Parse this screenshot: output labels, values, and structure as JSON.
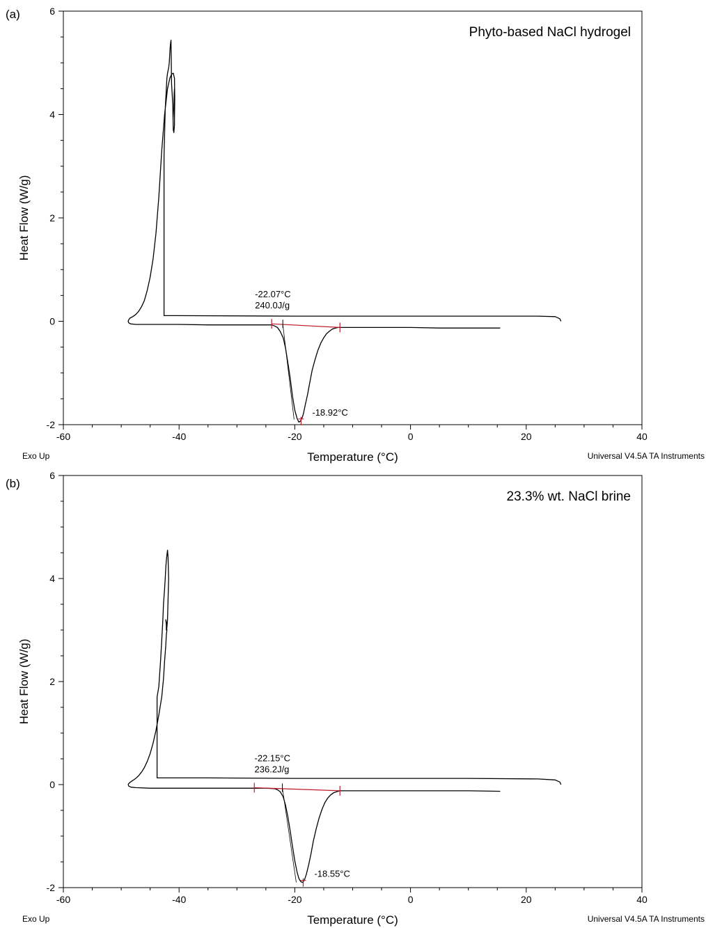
{
  "chart_data": [
    {
      "type": "line",
      "panel_label": "(a)",
      "title": "Phyto-based NaCl hydrogel",
      "xlabel": "Temperature (°C)",
      "ylabel": "Heat Flow (W/g)",
      "xlim": [
        -60,
        40
      ],
      "ylim": [
        -2,
        6
      ],
      "xticks": [
        -60,
        -40,
        -20,
        0,
        20,
        40
      ],
      "yticks": [
        -2,
        0,
        2,
        4,
        6
      ],
      "footer_left": "Exo Up",
      "footer_right": "Universal V4.5A TA Instruments",
      "annotations": {
        "onset_temp": "-22.07°C",
        "enthalpy": "240.0J/g",
        "peak_label": "-18.92°C"
      },
      "markers": {
        "onset_x": -22.07,
        "peak_x": -18.92,
        "peak_y": -1.93,
        "integration_limits": [
          -24,
          -12.2
        ]
      },
      "baseline": {
        "x": [
          -24,
          -12.2
        ],
        "y": [
          -0.05,
          -0.12
        ]
      },
      "series": [
        {
          "x": [
            26,
            25.8,
            25,
            22,
            10,
            0,
            -20,
            -42.6,
            -42.6,
            -42.6,
            -42.6,
            -42.4,
            -42.2,
            -42.1,
            -42.0,
            -41.9,
            -41.8,
            -41.7,
            -41.6,
            -41.5,
            -41.4,
            -41.3,
            -41.1,
            -41.0,
            -40.9,
            -40.8,
            -40.8,
            -40.75,
            -40.8,
            -40.85,
            -40.9,
            -40.8,
            -40.75,
            -40.8,
            -40.9,
            -41.0,
            -41.3,
            -41.6,
            -42.0,
            -42.5,
            -43.0,
            -43.5,
            -44.0,
            -44.5,
            -45.0,
            -45.5,
            -46.0,
            -46.5,
            -47.0,
            -47.5,
            -48.0,
            -48.5,
            -48.7,
            -48.8,
            -48.7,
            -48.4,
            -47.5,
            -46.0,
            -44.0,
            -40.0,
            -35.0,
            -30.0,
            -26.0,
            -24.0,
            -23.5,
            -23.0,
            -22.5,
            -22.0,
            -21.6,
            -21.2,
            -20.8,
            -20.4,
            -20.0,
            -19.6,
            -19.3,
            -19.0,
            -18.9,
            -18.7,
            -18.5,
            -18.2,
            -17.8,
            -17.4,
            -17.0,
            -16.5,
            -16.0,
            -15.5,
            -15.0,
            -14.5,
            -14.0,
            -13.5,
            -13.0,
            -12.5,
            -12.2,
            -11.5,
            -10.0,
            -5.0,
            0.0,
            5.0,
            10.0,
            15.5
          ],
          "y": [
            0.0,
            0.05,
            0.09,
            0.1,
            0.1,
            0.1,
            0.1,
            0.11,
            1.2,
            2.8,
            3.2,
            4.1,
            4.5,
            4.7,
            4.8,
            4.85,
            4.9,
            5.0,
            5.2,
            5.35,
            5.44,
            4.6,
            4.2,
            3.7,
            3.65,
            3.8,
            4.1,
            4.35,
            4.5,
            4.4,
            4.1,
            3.9,
            4.3,
            4.7,
            4.75,
            4.8,
            4.78,
            4.7,
            4.5,
            4.0,
            3.3,
            2.4,
            1.7,
            1.2,
            0.85,
            0.6,
            0.4,
            0.28,
            0.19,
            0.13,
            0.09,
            0.06,
            0.03,
            0.0,
            -0.03,
            -0.05,
            -0.06,
            -0.06,
            -0.06,
            -0.06,
            -0.07,
            -0.07,
            -0.07,
            -0.07,
            -0.09,
            -0.12,
            -0.2,
            -0.32,
            -0.52,
            -0.8,
            -1.1,
            -1.45,
            -1.72,
            -1.88,
            -1.95,
            -1.93,
            -1.9,
            -1.86,
            -1.78,
            -1.62,
            -1.42,
            -1.18,
            -0.95,
            -0.74,
            -0.56,
            -0.42,
            -0.32,
            -0.24,
            -0.19,
            -0.15,
            -0.13,
            -0.12,
            -0.12,
            -0.12,
            -0.12,
            -0.12,
            -0.12,
            -0.13,
            -0.13,
            -0.13
          ]
        }
      ]
    },
    {
      "type": "line",
      "panel_label": "(b)",
      "title": "23.3% wt. NaCl brine",
      "xlabel": "Temperature (°C)",
      "ylabel": "Heat Flow (W/g)",
      "xlim": [
        -60,
        40
      ],
      "ylim": [
        -2,
        6
      ],
      "xticks": [
        -60,
        -40,
        -20,
        0,
        20,
        40
      ],
      "yticks": [
        -2,
        0,
        2,
        4,
        6
      ],
      "footer_left": "Exo Up",
      "footer_right": "Universal V4.5A TA Instruments",
      "annotations": {
        "onset_temp": "-22.15°C",
        "enthalpy": "236.2J/g",
        "peak_label": "-18.55°C"
      },
      "markers": {
        "onset_x": -22.15,
        "peak_x": -18.55,
        "peak_y": -1.9,
        "integration_limits": [
          -27,
          -12.2
        ]
      },
      "baseline": {
        "x": [
          -27,
          -12.2
        ],
        "y": [
          -0.06,
          -0.12
        ]
      },
      "series": [
        {
          "x": [
            26,
            25.8,
            25,
            22,
            10,
            0,
            -20,
            -35.0,
            -43.8,
            -43.8,
            -43.8,
            -43.5,
            -43.2,
            -43.0,
            -42.8,
            -42.7,
            -42.5,
            -42.4,
            -42.3,
            -42.2,
            -42.1,
            -42.0,
            -41.9,
            -41.8,
            -41.9,
            -42.0,
            -42.1,
            -42.2,
            -42.2,
            -42.3,
            -42.2,
            -42.1,
            -42.2,
            -42.3,
            -42.5,
            -42.7,
            -43.0,
            -43.5,
            -44.0,
            -44.5,
            -45.0,
            -45.5,
            -46.0,
            -46.5,
            -47.0,
            -47.5,
            -48.0,
            -48.4,
            -48.7,
            -48.8,
            -48.7,
            -48.3,
            -47.5,
            -45.0,
            -40.0,
            -35.0,
            -30.0,
            -27.0,
            -25.0,
            -23.5,
            -23.0,
            -22.5,
            -22.0,
            -21.6,
            -21.2,
            -20.8,
            -20.4,
            -20.0,
            -19.6,
            -19.3,
            -19.0,
            -18.7,
            -18.5,
            -18.3,
            -18.0,
            -17.6,
            -17.2,
            -16.8,
            -16.3,
            -15.8,
            -15.3,
            -14.8,
            -14.3,
            -13.8,
            -13.3,
            -12.8,
            -12.2,
            -11.0,
            -8.0,
            -4.0,
            0.0,
            5.0,
            10.0,
            15.5
          ],
          "y": [
            0.0,
            0.05,
            0.09,
            0.11,
            0.12,
            0.12,
            0.12,
            0.13,
            0.13,
            0.8,
            1.7,
            1.9,
            2.4,
            2.8,
            3.2,
            3.5,
            3.8,
            4.0,
            4.2,
            4.35,
            4.45,
            4.55,
            4.4,
            4.0,
            3.6,
            3.2,
            3.05,
            3.0,
            3.1,
            3.2,
            3.15,
            3.0,
            2.9,
            2.7,
            2.4,
            2.05,
            1.7,
            1.35,
            1.05,
            0.8,
            0.6,
            0.45,
            0.33,
            0.24,
            0.17,
            0.12,
            0.08,
            0.05,
            0.02,
            0.0,
            -0.03,
            -0.05,
            -0.06,
            -0.07,
            -0.07,
            -0.07,
            -0.07,
            -0.07,
            -0.07,
            -0.08,
            -0.1,
            -0.14,
            -0.24,
            -0.4,
            -0.62,
            -0.9,
            -1.2,
            -1.48,
            -1.7,
            -1.82,
            -1.88,
            -1.9,
            -1.88,
            -1.84,
            -1.74,
            -1.56,
            -1.34,
            -1.1,
            -0.86,
            -0.65,
            -0.48,
            -0.35,
            -0.26,
            -0.2,
            -0.16,
            -0.14,
            -0.12,
            -0.12,
            -0.12,
            -0.12,
            -0.12,
            -0.12,
            -0.12,
            -0.13
          ]
        }
      ]
    }
  ]
}
